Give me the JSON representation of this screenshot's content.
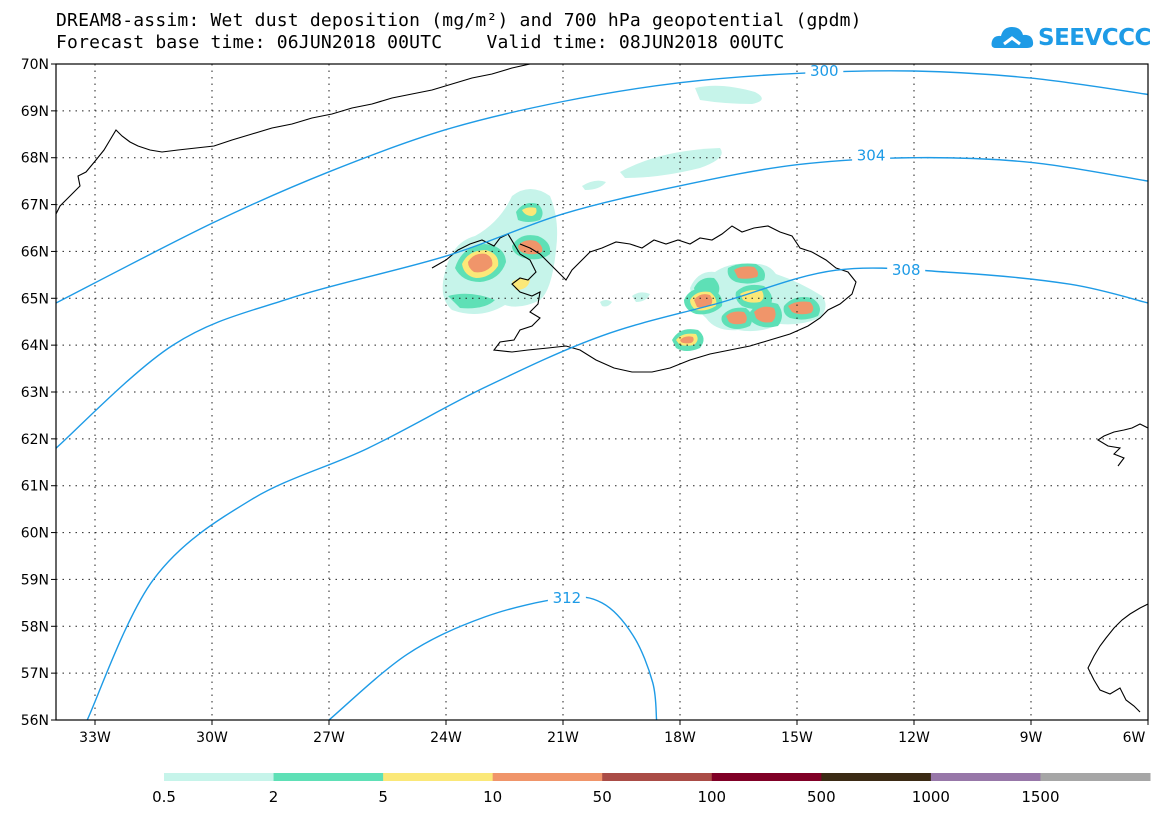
{
  "header": {
    "title_line1": "DREAM8-assim: Wet dust deposition (mg/m²) and 700 hPa geopotential (gpdm)",
    "title_line2": "Forecast base time: 06JUN2018 00UTC    Valid time: 08JUN2018 00UTC"
  },
  "logo": {
    "text": "SEEVCCC",
    "icon": "cloud-icon",
    "color": "#1e9be6"
  },
  "map": {
    "lon_range": [
      -34,
      -6
    ],
    "lat_range": [
      56,
      70
    ],
    "lat_labels": [
      "70N",
      "69N",
      "68N",
      "67N",
      "66N",
      "65N",
      "64N",
      "63N",
      "62N",
      "61N",
      "60N",
      "59N",
      "58N",
      "57N",
      "56N"
    ],
    "lat_values": [
      70,
      69,
      68,
      67,
      66,
      65,
      64,
      63,
      62,
      61,
      60,
      59,
      58,
      57,
      56
    ],
    "lon_labels": [
      "33W",
      "30W",
      "27W",
      "24W",
      "21W",
      "18W",
      "15W",
      "12W",
      "9W",
      "6W"
    ],
    "lon_values": [
      -33,
      -30,
      -27,
      -24,
      -21,
      -18,
      -15,
      -12,
      -9,
      -6
    ],
    "contour_color": "#1e9be6",
    "contours": [
      {
        "label": "300",
        "points": [
          [
            -34,
            64.9
          ],
          [
            -30,
            66.6
          ],
          [
            -27,
            67.7
          ],
          [
            -24,
            68.6
          ],
          [
            -21,
            69.2
          ],
          [
            -18,
            69.6
          ],
          [
            -15,
            69.8
          ],
          [
            -12,
            69.85
          ],
          [
            -9,
            69.7
          ],
          [
            -6,
            69.35
          ]
        ],
        "label_at": [
          -14.3,
          69.85
        ]
      },
      {
        "label": "304",
        "points": [
          [
            -34,
            61.8
          ],
          [
            -31,
            64.0
          ],
          [
            -28,
            65.0
          ],
          [
            -24,
            65.9
          ],
          [
            -21,
            66.8
          ],
          [
            -18,
            67.4
          ],
          [
            -15,
            67.85
          ],
          [
            -12,
            68.0
          ],
          [
            -9,
            67.9
          ],
          [
            -6,
            67.5
          ]
        ],
        "label_at": [
          -13.1,
          68.05
        ]
      },
      {
        "label": "308",
        "points": [
          [
            -33.2,
            56.0
          ],
          [
            -31.5,
            59.0
          ],
          [
            -29,
            60.7
          ],
          [
            -26,
            61.8
          ],
          [
            -23,
            63.1
          ],
          [
            -20,
            64.2
          ],
          [
            -17,
            64.9
          ],
          [
            -14,
            65.6
          ],
          [
            -11,
            65.55
          ],
          [
            -8,
            65.3
          ],
          [
            -6,
            64.9
          ]
        ],
        "label_at": [
          -12.2,
          65.6
        ]
      },
      {
        "label": "312",
        "points": [
          [
            -27,
            56.0
          ],
          [
            -25,
            57.4
          ],
          [
            -23,
            58.2
          ],
          [
            -21,
            58.6
          ],
          [
            -20,
            58.5
          ],
          [
            -19.2,
            57.8
          ],
          [
            -18.7,
            56.8
          ],
          [
            -18.6,
            56.0
          ]
        ],
        "label_at": [
          -20.9,
          58.6
        ]
      }
    ]
  },
  "colorbar": {
    "labels": [
      "0.5",
      "2",
      "5",
      "10",
      "50",
      "100",
      "500",
      "1000",
      "1500"
    ],
    "colors": [
      "#c6f4ea",
      "#5ee0b6",
      "#fbe878",
      "#f0956a",
      "#aa4c46",
      "#800026",
      "#3b2a14",
      "#9777a8",
      "#a6a6a6"
    ]
  }
}
